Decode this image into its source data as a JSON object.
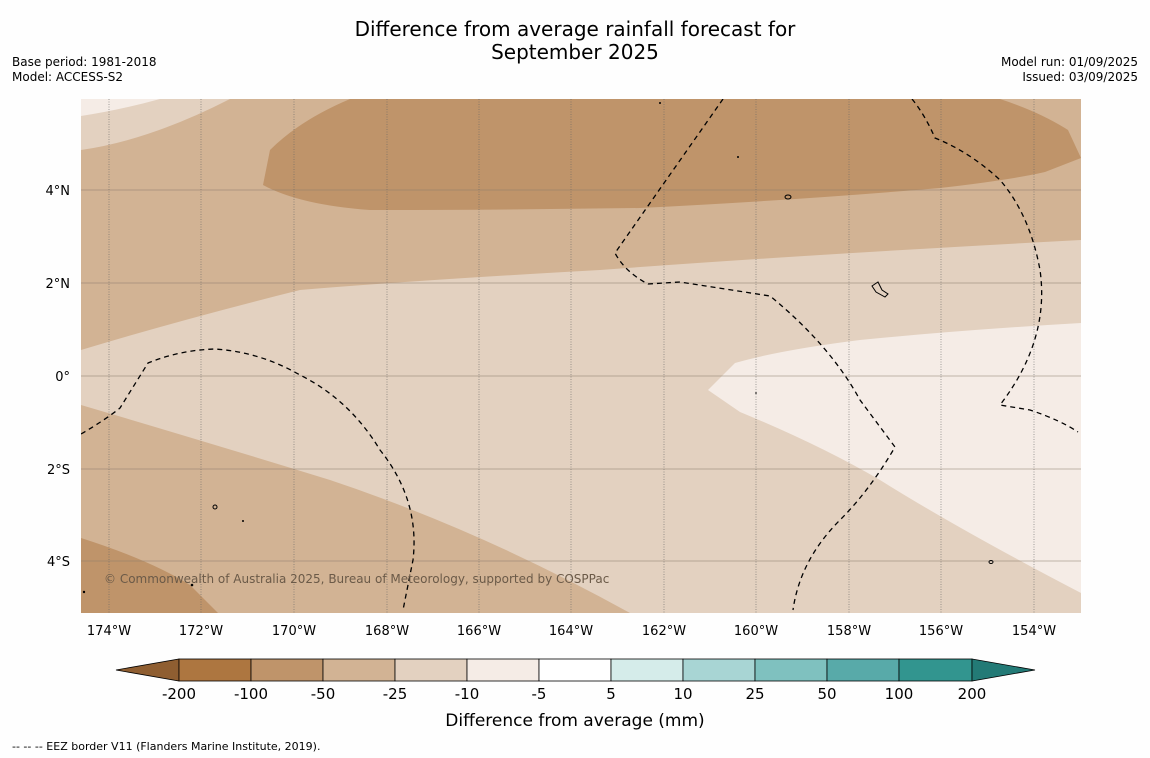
{
  "title": {
    "line1": "Difference from average rainfall forecast for",
    "line2": "September 2025"
  },
  "meta_left": {
    "base_period": "Base period: 1981-2018",
    "model": "Model: ACCESS-S2"
  },
  "meta_right": {
    "model_run": "Model run: 01/09/2025",
    "issued": "Issued: 03/09/2025"
  },
  "map": {
    "longitude_labels": [
      "174°W",
      "172°W",
      "170°W",
      "168°W",
      "166°W",
      "164°W",
      "162°W",
      "160°W",
      "158°W",
      "156°W",
      "154°W"
    ],
    "latitude_labels": [
      "4°N",
      "2°N",
      "0°",
      "2°S",
      "4°S"
    ],
    "copyright": "© Commonwealth of Australia 2025, Bureau of Meteorology, supported by COSPPac",
    "region_colors": {
      "minus_100_to_50": "#bf946a",
      "minus_50_to_25": "#d2b394",
      "minus_25_to_10": "#e3d1c0",
      "minus_10_to_5": "#f5ece6"
    }
  },
  "colorbar": {
    "label": "Difference from average (mm)",
    "ticks": [
      "-200",
      "-100",
      "-50",
      "-25",
      "-10",
      "-5",
      "5",
      "10",
      "25",
      "50",
      "100",
      "200"
    ],
    "colors": [
      "#8f5e31",
      "#ad7640",
      "#bf946a",
      "#d2b394",
      "#e3d1c0",
      "#f5ece6",
      "#ffffff",
      "#d5ecea",
      "#a8d5d4",
      "#7fc1bf",
      "#58aaa9",
      "#32958f",
      "#237a76"
    ]
  },
  "footer": {
    "legend_text": "--  --  -- EEZ border V11 (Flanders Marine Institute, 2019)."
  }
}
